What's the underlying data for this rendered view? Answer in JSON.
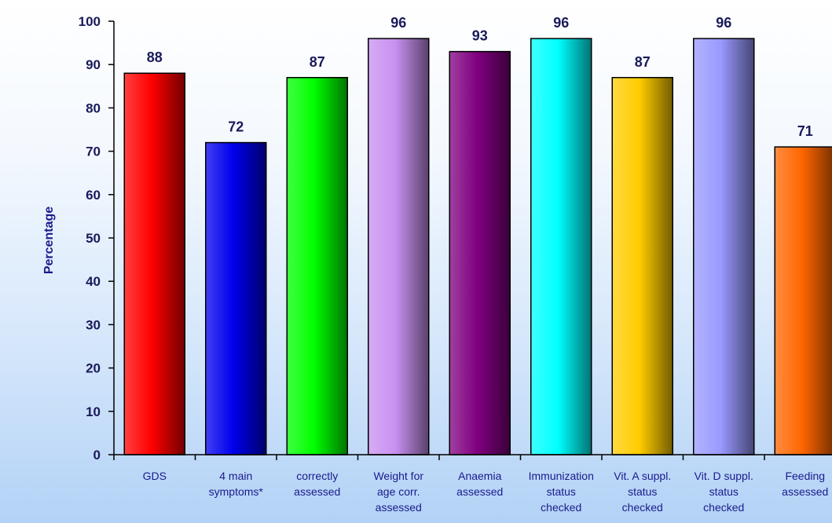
{
  "chart_data": {
    "type": "bar",
    "title": "",
    "xlabel": "",
    "ylabel": "Percentage",
    "ylim": [
      0,
      100
    ],
    "yticks": [
      0,
      10,
      20,
      30,
      40,
      50,
      60,
      70,
      80,
      90,
      100
    ],
    "grid": false,
    "categories": [
      [
        "GDS"
      ],
      [
        "4 main",
        "symptoms*"
      ],
      [
        "correctly",
        "assessed"
      ],
      [
        "Weight for",
        "age corr.",
        "assessed"
      ],
      [
        "Anaemia",
        "assessed"
      ],
      [
        "Immunization",
        "status",
        "checked"
      ],
      [
        "Vit. A suppl.",
        "status",
        "checked"
      ],
      [
        "Vit. D suppl.",
        "status",
        "checked"
      ],
      [
        "Feeding",
        "assessed"
      ]
    ],
    "values": [
      88,
      72,
      87,
      96,
      93,
      96,
      87,
      96,
      71
    ],
    "colors": [
      "#ff0000",
      "#0000ee",
      "#00ff00",
      "#c890f0",
      "#800080",
      "#00ffff",
      "#ffcc00",
      "#9999ff",
      "#ff6600"
    ]
  }
}
